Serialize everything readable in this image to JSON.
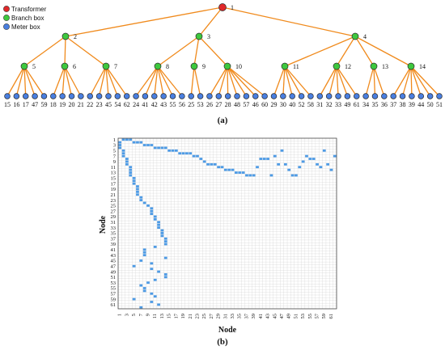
{
  "legend": {
    "transformer": "Transformer",
    "branch_box": "Branch box",
    "meter_box": "Meter box"
  },
  "colors": {
    "transformer": "#e0282a",
    "branch_box": "#3ec83e",
    "meter_box": "#4a7fe0",
    "edge": "#f08a1c",
    "matrix_cell": "#4d9be6",
    "grid": "#d4d4d4"
  },
  "tree": {
    "root": "1",
    "level1": [
      "2",
      "3",
      "4"
    ],
    "branches": [
      {
        "id": "5",
        "parent": "2",
        "meters": [
          "15",
          "16",
          "17",
          "47",
          "59"
        ]
      },
      {
        "id": "6",
        "parent": "2",
        "meters": [
          "18",
          "19",
          "20",
          "21"
        ]
      },
      {
        "id": "7",
        "parent": "2",
        "meters": [
          "22",
          "23",
          "45",
          "54",
          "62"
        ]
      },
      {
        "id": "8",
        "parent": "3",
        "meters": [
          "24",
          "41",
          "42",
          "43",
          "55",
          "56"
        ]
      },
      {
        "id": "9",
        "parent": "3",
        "meters": [
          "25",
          "53"
        ]
      },
      {
        "id": "10",
        "parent": "3",
        "meters": [
          "26",
          "27",
          "28",
          "48",
          "57",
          "46",
          "60"
        ]
      },
      {
        "id": "11",
        "parent": "4",
        "meters": [
          "29",
          "30",
          "40",
          "52",
          "58"
        ]
      },
      {
        "id": "12",
        "parent": "4",
        "meters": [
          "31",
          "32",
          "33",
          "49",
          "61"
        ]
      },
      {
        "id": "13",
        "parent": "4",
        "meters": [
          "34",
          "35",
          "36"
        ]
      },
      {
        "id": "14",
        "parent": "4",
        "meters": [
          "37",
          "38",
          "39",
          "44",
          "50",
          "51"
        ]
      }
    ]
  },
  "captions": {
    "a": "(a)",
    "b": "(b)"
  },
  "matrix": {
    "xlabel": "Node",
    "ylabel": "Node",
    "size": 62,
    "tick_labels": [
      "1",
      "3",
      "5",
      "7",
      "9",
      "11",
      "13",
      "15",
      "17",
      "19",
      "21",
      "23",
      "25",
      "27",
      "29",
      "31",
      "33",
      "35",
      "37",
      "39",
      "41",
      "43",
      "45",
      "47",
      "49",
      "51",
      "53",
      "55",
      "57",
      "59",
      "61"
    ]
  }
}
